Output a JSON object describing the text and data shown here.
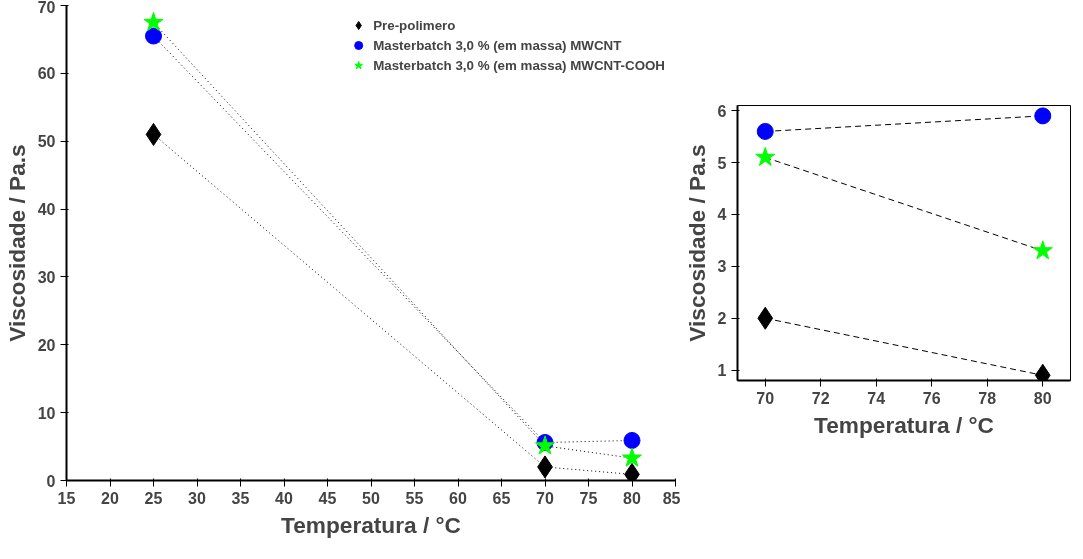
{
  "chart_data": [
    {
      "type": "line",
      "xlabel": "Temperatura / °C",
      "ylabel": "Viscosidade / Pa.s",
      "x": [
        25,
        70,
        80
      ],
      "series": [
        {
          "name": "Pre-polimero",
          "color": "#000000",
          "marker": "diamond",
          "values": [
            51,
            2,
            0.9
          ]
        },
        {
          "name": "Masterbatch 3,0 % (em massa) MWCNT",
          "color": "#0000ff",
          "marker": "circle",
          "values": [
            65.5,
            5.6,
            5.9
          ]
        },
        {
          "name": "Masterbatch 3,0 % (em massa) MWCNT-COOH",
          "color": "#00ff00",
          "marker": "star",
          "values": [
            67.5,
            5.1,
            3.3
          ]
        }
      ],
      "xlim": [
        15,
        85
      ],
      "xticks": [
        15,
        20,
        25,
        30,
        35,
        40,
        45,
        50,
        55,
        60,
        65,
        70,
        75,
        80,
        85
      ],
      "ylim": [
        0,
        70
      ],
      "yticks": [
        0,
        10,
        20,
        30,
        40,
        50,
        60,
        70
      ],
      "line_style": "dotted",
      "grid": false,
      "legend": "top right"
    },
    {
      "type": "line",
      "xlabel": "Temperatura / °C",
      "ylabel": "Viscosidade / Pa.s",
      "x": [
        70,
        80
      ],
      "series": [
        {
          "color": "#000000",
          "marker": "diamond",
          "values": [
            2,
            0.9
          ]
        },
        {
          "color": "#0000ff",
          "marker": "circle",
          "values": [
            5.6,
            5.9
          ]
        },
        {
          "color": "#00ff00",
          "marker": "star",
          "values": [
            5.1,
            3.3
          ]
        }
      ],
      "xlim": [
        69,
        81
      ],
      "xticks": [
        70,
        72,
        74,
        76,
        78,
        80
      ],
      "ylim": [
        0.8,
        6.1
      ],
      "yticks": [
        1,
        2,
        3,
        4,
        5,
        6
      ],
      "line_style": "dashed",
      "grid": false
    }
  ]
}
